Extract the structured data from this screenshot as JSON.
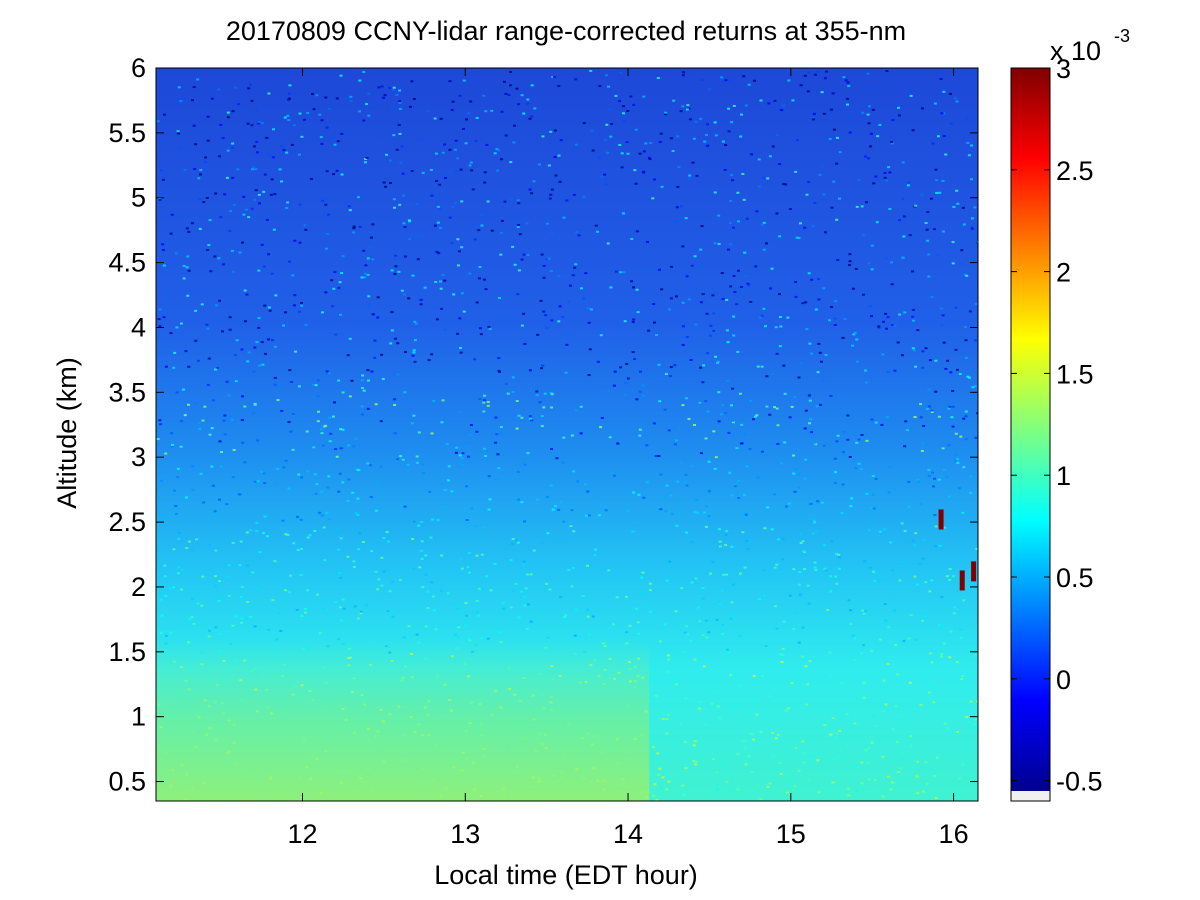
{
  "chart_data": {
    "type": "heatmap",
    "title": "20170809 CCNY-lidar range-corrected returns at 355-nm",
    "xlabel": "Local time (EDT hour)",
    "ylabel": "Altitude (km)",
    "xlim": [
      11.1,
      16.15
    ],
    "ylim": [
      0.35,
      6.0
    ],
    "x_ticks": [
      12,
      13,
      14,
      15,
      16
    ],
    "x_tick_labels": [
      "12",
      "13",
      "14",
      "15",
      "16"
    ],
    "y_ticks": [
      0.5,
      1,
      1.5,
      2,
      2.5,
      3,
      3.5,
      4,
      4.5,
      5,
      5.5,
      6
    ],
    "y_tick_labels": [
      "0.5",
      "1",
      "1.5",
      "2",
      "2.5",
      "3",
      "3.5",
      "4",
      "4.5",
      "5",
      "5.5",
      "6"
    ],
    "colorbar": {
      "colormap": "jet",
      "clim": [
        -0.6,
        3.0
      ],
      "ticks": [
        -0.5,
        0,
        0.5,
        1,
        1.5,
        2,
        2.5,
        3
      ],
      "tick_labels": [
        "-0.5",
        "0",
        "0.5",
        "1",
        "1.5",
        "2",
        "2.5",
        "3"
      ],
      "exponent_base": "x 10",
      "exponent_power": "-3"
    },
    "regions": [
      {
        "description_altitude_km": [
          0.35,
          1.5
        ],
        "approx_value": 1.1
      },
      {
        "description_altitude_km": [
          1.5,
          2.5
        ],
        "approx_value": 0.8
      },
      {
        "description_altitude_km": [
          2.5,
          3.5
        ],
        "approx_value": 0.45
      },
      {
        "description_altitude_km": [
          3.5,
          6.0
        ],
        "approx_value": 0.1
      }
    ],
    "cloud_features": [
      {
        "time_hour": 15.92,
        "altitude_km": 2.52,
        "value": 3.0
      },
      {
        "time_hour": 16.05,
        "altitude_km": 2.05,
        "value": 3.0
      },
      {
        "time_hour": 16.12,
        "altitude_km": 2.12,
        "value": 3.0
      }
    ],
    "grid": false
  }
}
